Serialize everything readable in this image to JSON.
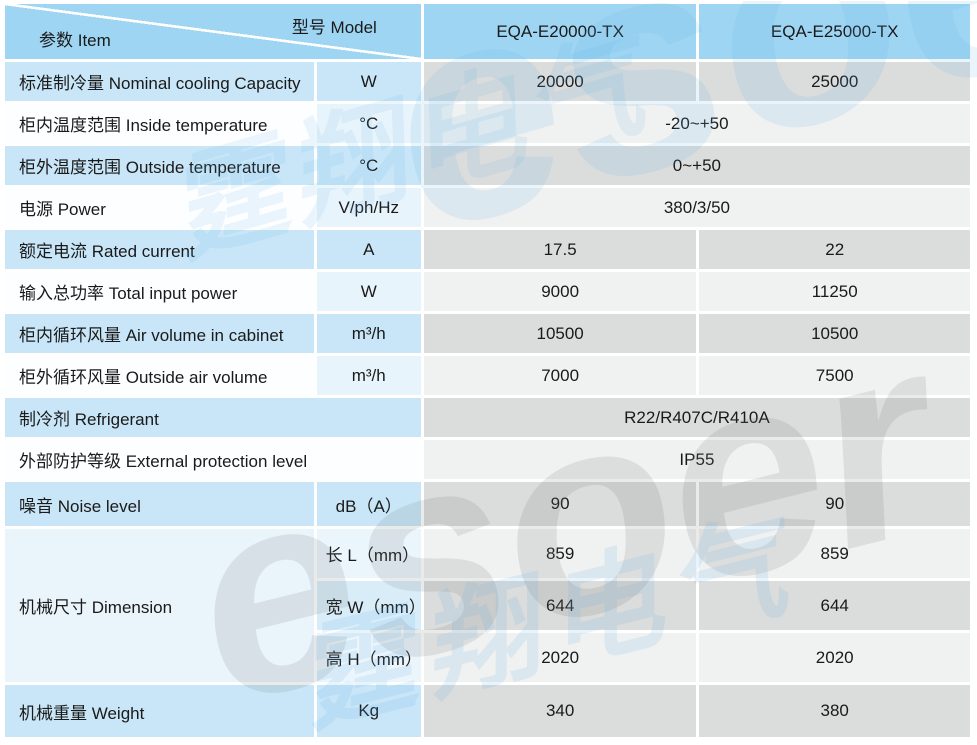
{
  "colors": {
    "header_blue": "#9ED5F3",
    "row_blue": "#C8E6F7",
    "row_white": "#FDFEFF",
    "unit_blue_light": "#E8F4FB",
    "value_gray": "#DBDCDC",
    "value_gray_light": "#F0F1F1",
    "dimension_cell_blue": "#E9F4FB",
    "text": "#1A1A1A"
  },
  "header": {
    "model_label": "型号 Model",
    "item_label": "参数 Item",
    "model1": "EQA-E20000-TX",
    "model2": "EQA-E25000-TX"
  },
  "rows": {
    "cooling": {
      "label": "标准制冷量 Nominal cooling Capacity",
      "unit": "W",
      "v1": "20000",
      "v2": "25000"
    },
    "inside_temp": {
      "label": "柜内温度范围  Inside temperature",
      "unit": "°C",
      "v": "-20~+50"
    },
    "outside_temp": {
      "label": "柜外温度范围  Outside  temperature",
      "unit": "°C",
      "v": "0~+50"
    },
    "power": {
      "label": "电源 Power",
      "unit": "V/ph/Hz",
      "v": "380/3/50"
    },
    "current": {
      "label": "额定电流 Rated current",
      "unit": "A",
      "v1": "17.5",
      "v2": "22"
    },
    "input_power": {
      "label": "输入总功率  Total input power",
      "unit": "W",
      "v1": "9000",
      "v2": "11250"
    },
    "air_in": {
      "label": "柜内循环风量  Air volume in cabinet",
      "unit": "m³/h",
      "v1": "10500",
      "v2": "10500"
    },
    "air_out": {
      "label": "柜外循环风量  Outside air volume",
      "unit": "m³/h",
      "v1": "7000",
      "v2": "7500"
    },
    "refrigerant": {
      "label": "制冷剂  Refrigerant",
      "v": "R22/R407C/R410A"
    },
    "protection": {
      "label": "外部防护等级  External protection level",
      "v": "IP55"
    },
    "noise": {
      "label": "噪音  Noise level",
      "unit": "dB（A）",
      "v1": "90",
      "v2": "90"
    },
    "dimension": {
      "label": "机械尺寸 Dimension",
      "length": {
        "unit": "长 L（mm）",
        "v1": "859",
        "v2": "859"
      },
      "width": {
        "unit": "宽 W（mm）",
        "v1": "644",
        "v2": "644"
      },
      "height": {
        "unit": "高 H（mm）",
        "v1": "2020",
        "v2": "2020"
      }
    },
    "weight": {
      "label": "机械重量  Weight",
      "unit": "Kg",
      "v1": "340",
      "v2": "380"
    }
  },
  "watermark": {
    "latin": "esoer",
    "cjk": "霆翔电气"
  }
}
